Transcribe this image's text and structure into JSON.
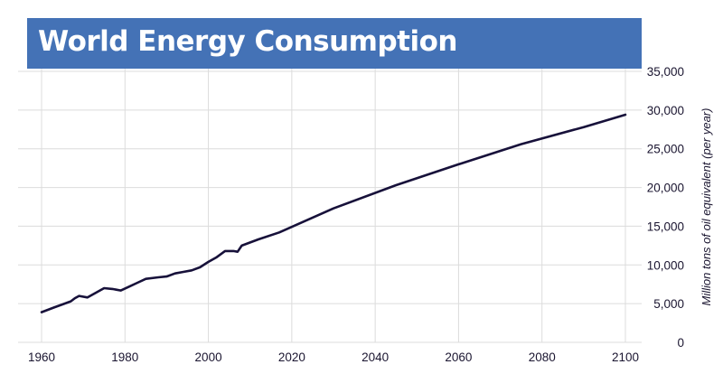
{
  "chart_data": {
    "type": "line",
    "title": "World Energy Consumption",
    "xlabel": "",
    "ylabel": "Million tons of oil equivalent (per year)",
    "xlim": [
      1960,
      2100
    ],
    "ylim": [
      0,
      35000
    ],
    "x_ticks": [
      1960,
      1980,
      2000,
      2020,
      2040,
      2060,
      2080,
      2100
    ],
    "y_ticks": [
      0,
      5000,
      10000,
      15000,
      20000,
      25000,
      30000,
      35000
    ],
    "y_tick_labels": [
      "0",
      "5,000",
      "10,000",
      "15,000",
      "20,000",
      "25,000",
      "30,000",
      "35,000"
    ],
    "grid": true,
    "series": [
      {
        "color": "#17113a",
        "x": [
          1960,
          1963,
          1965,
          1967,
          1968,
          1969,
          1971,
          1973,
          1975,
          1977,
          1979,
          1981,
          1983,
          1985,
          1988,
          1990,
          1992,
          1994,
          1996,
          1998,
          2000,
          2002,
          2004,
          2006,
          2007,
          2008,
          2012,
          2017,
          2030,
          2045,
          2060,
          2075,
          2090,
          2100
        ],
        "y": [
          3900,
          4500,
          4900,
          5300,
          5700,
          6000,
          5800,
          6400,
          7000,
          6900,
          6700,
          7200,
          7700,
          8200,
          8400,
          8500,
          8900,
          9100,
          9300,
          9700,
          10400,
          11000,
          11800,
          11800,
          11700,
          12500,
          13300,
          14200,
          17300,
          20300,
          23000,
          25600,
          27800,
          29400
        ]
      }
    ]
  }
}
